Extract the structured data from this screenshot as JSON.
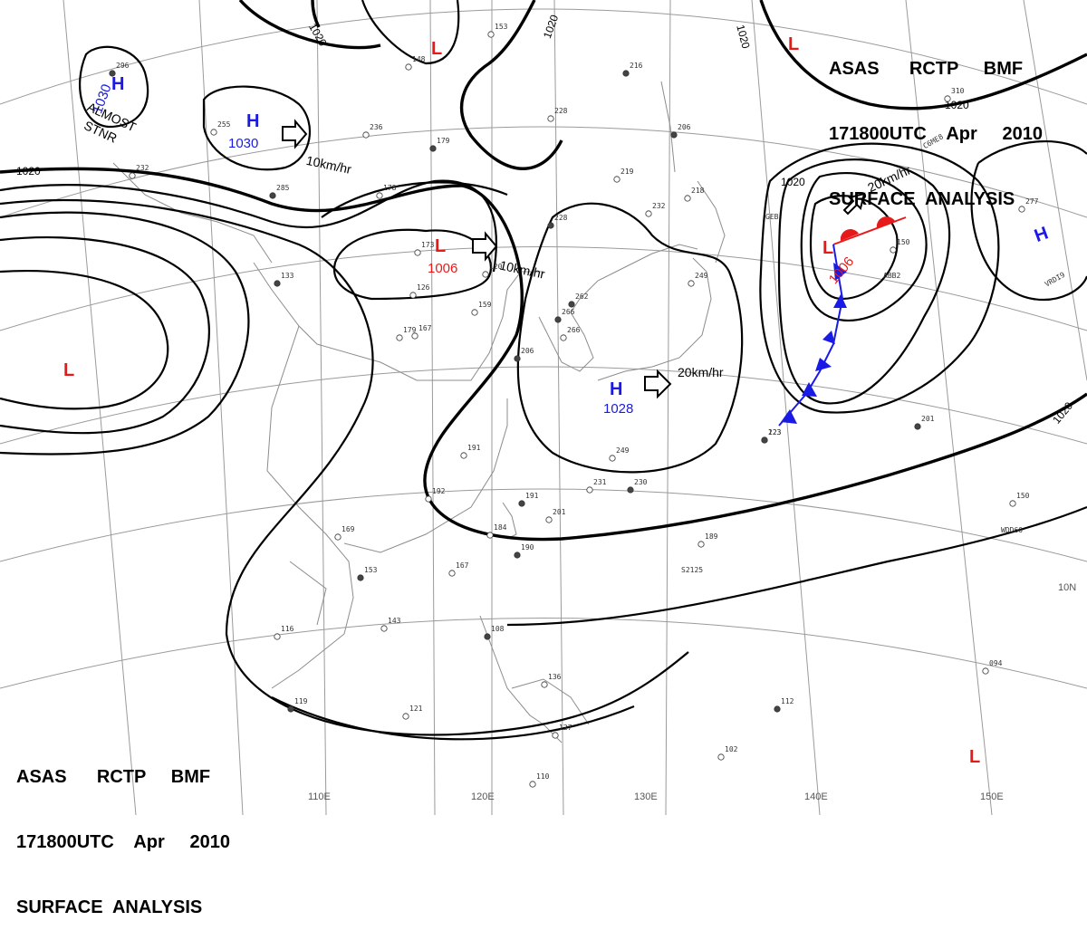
{
  "header": {
    "line1": "ASAS      RCTP     BMF",
    "line2": "171800UTC    Apr     2010",
    "line3": "SURFACE  ANALYSIS"
  },
  "isobar_labels": [
    "1020",
    "1020",
    "1020",
    "1020",
    "1020",
    "1020",
    "1020"
  ],
  "longitude_labels": [
    "110E",
    "120E",
    "130E",
    "140E",
    "150E"
  ],
  "latitude_labels": [
    "10N"
  ],
  "pressure_centers": {
    "highs": [
      {
        "symbol": "H",
        "value": "1030"
      },
      {
        "symbol": "H",
        "value": "1030"
      },
      {
        "symbol": "H",
        "value": "1028"
      },
      {
        "symbol": "H",
        "value": ""
      }
    ],
    "lows": [
      {
        "symbol": "L",
        "value": "1006"
      },
      {
        "symbol": "L",
        "value": "1006"
      },
      {
        "symbol": "L",
        "value": ""
      },
      {
        "symbol": "L",
        "value": ""
      },
      {
        "symbol": "L",
        "value": ""
      }
    ]
  },
  "annotations": {
    "almost": "ALMOST",
    "stnr": "STNR"
  },
  "movements": [
    "10km/hr",
    "10km/hr",
    "20km/hr",
    "20km/hr"
  ],
  "colors": {
    "high": "#1a1ae6",
    "low": "#e61a1a",
    "isobar": "#000000",
    "grid": "#9a9a9a",
    "warm_front": "#e61a1a",
    "cold_front": "#1a1ae6"
  },
  "station_obs": [
    "296",
    "232",
    "255",
    "285",
    "148",
    "236",
    "179",
    "178",
    "153",
    "216",
    "228",
    "219",
    "206",
    "218",
    "232",
    "228",
    "126",
    "120",
    "133",
    "159",
    "167",
    "262",
    "266",
    "249",
    "266",
    "150",
    "277",
    "201",
    "249",
    "231",
    "230",
    "191",
    "192",
    "191",
    "184",
    "201",
    "190",
    "169",
    "167",
    "153",
    "143",
    "116",
    "108",
    "136",
    "121",
    "119",
    "110",
    "127",
    "112",
    "102",
    "094",
    "123",
    "150",
    "189",
    "223",
    "310",
    "173",
    "206",
    "179"
  ],
  "ship_ids": [
    "C6ME8",
    "ABB2",
    "VRDI9",
    "WDD60",
    "S2125",
    "GEB"
  ]
}
